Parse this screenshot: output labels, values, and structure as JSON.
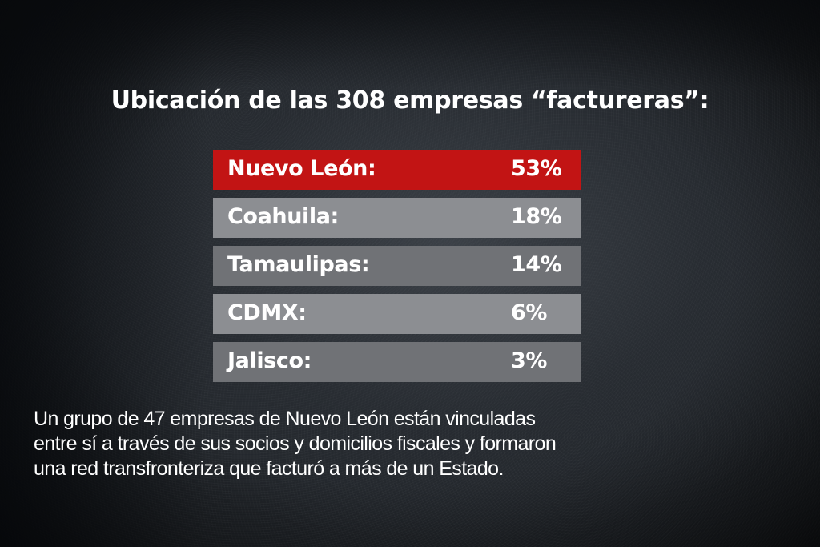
{
  "title": "Ubicación de las 308 empresas “factureras”:",
  "rows": [
    {
      "label": "Nuevo León:",
      "value": "53%",
      "color": "#c21414"
    },
    {
      "label": "Coahuila:",
      "value": "18%",
      "color": "#8c8e92"
    },
    {
      "label": "Tamaulipas:",
      "value": "14%",
      "color": "#707276"
    },
    {
      "label": "CDMX:",
      "value": "6%",
      "color": "#8c8e92"
    },
    {
      "label": "Jalisco:",
      "value": "3%",
      "color": "#707276"
    }
  ],
  "footer": {
    "lines": [
      "Un grupo de 47 empresas de Nuevo León están vinculadas",
      "entre sí a través de sus socios y domicilios fiscales y formaron",
      "una red transfronteriza que facturó a más de un Estado."
    ]
  },
  "chart_data": {
    "type": "table",
    "title": "Ubicación de las 308 empresas “factureras”:",
    "categories": [
      "Nuevo León",
      "Coahuila",
      "Tamaulipas",
      "CDMX",
      "Jalisco"
    ],
    "values": [
      53,
      18,
      14,
      6,
      3
    ],
    "unit": "%",
    "highlight": "Nuevo León",
    "annotation": "Un grupo de 47 empresas de Nuevo León están vinculadas entre sí a través de sus socios y domicilios fiscales y formaron una red transfronteriza que facturó a más de un Estado."
  }
}
